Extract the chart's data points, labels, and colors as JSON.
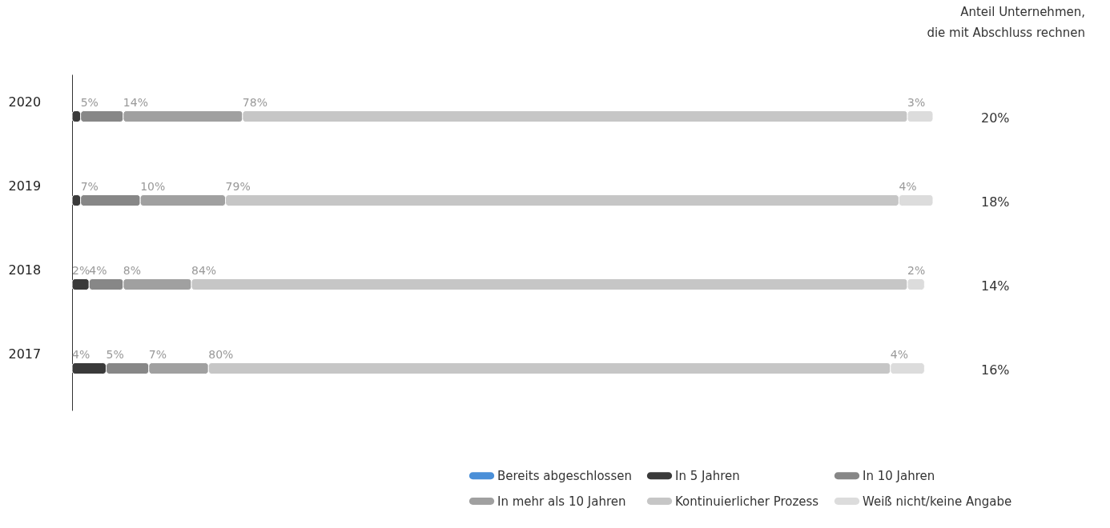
{
  "chart_data": {
    "type": "bar",
    "orientation": "horizontal",
    "stacked": true,
    "categories": [
      "2020",
      "2019",
      "2018",
      "2017"
    ],
    "series": [
      {
        "name": "Bereits abgeschlossen",
        "color": "#4a8fd8",
        "values": [
          null,
          null,
          null,
          null
        ]
      },
      {
        "name": "In 5 Jahren",
        "color": "#3a3a3a",
        "values": [
          1,
          1,
          2,
          4
        ],
        "value_labels": [
          null,
          null,
          "2%",
          "4%"
        ]
      },
      {
        "name": "In 10 Jahren",
        "color": "#878787",
        "values": [
          5,
          7,
          4,
          5
        ],
        "value_labels": [
          "5%",
          "7%",
          "4%",
          "5%"
        ]
      },
      {
        "name": "In mehr als 10 Jahren",
        "color": "#a0a0a0",
        "values": [
          14,
          10,
          8,
          7
        ],
        "value_labels": [
          "14%",
          "10%",
          "8%",
          "7%"
        ]
      },
      {
        "name": "Kontinuierlicher Prozess",
        "color": "#c6c6c6",
        "values": [
          78,
          79,
          84,
          80
        ],
        "value_labels": [
          "78%",
          "79%",
          "84%",
          "80%"
        ]
      },
      {
        "name": "Weiß nicht/keine Angabe",
        "color": "#dcdcdc",
        "values": [
          3,
          4,
          2,
          4
        ],
        "value_labels": [
          "3%",
          "4%",
          "2%",
          "4%"
        ]
      }
    ],
    "annotations": [
      "Anteil Unternehmen,\ndie mit Abschluss rechnen",
      "20%",
      "18%",
      "14%",
      "16%"
    ],
    "legend": "bottom right"
  }
}
